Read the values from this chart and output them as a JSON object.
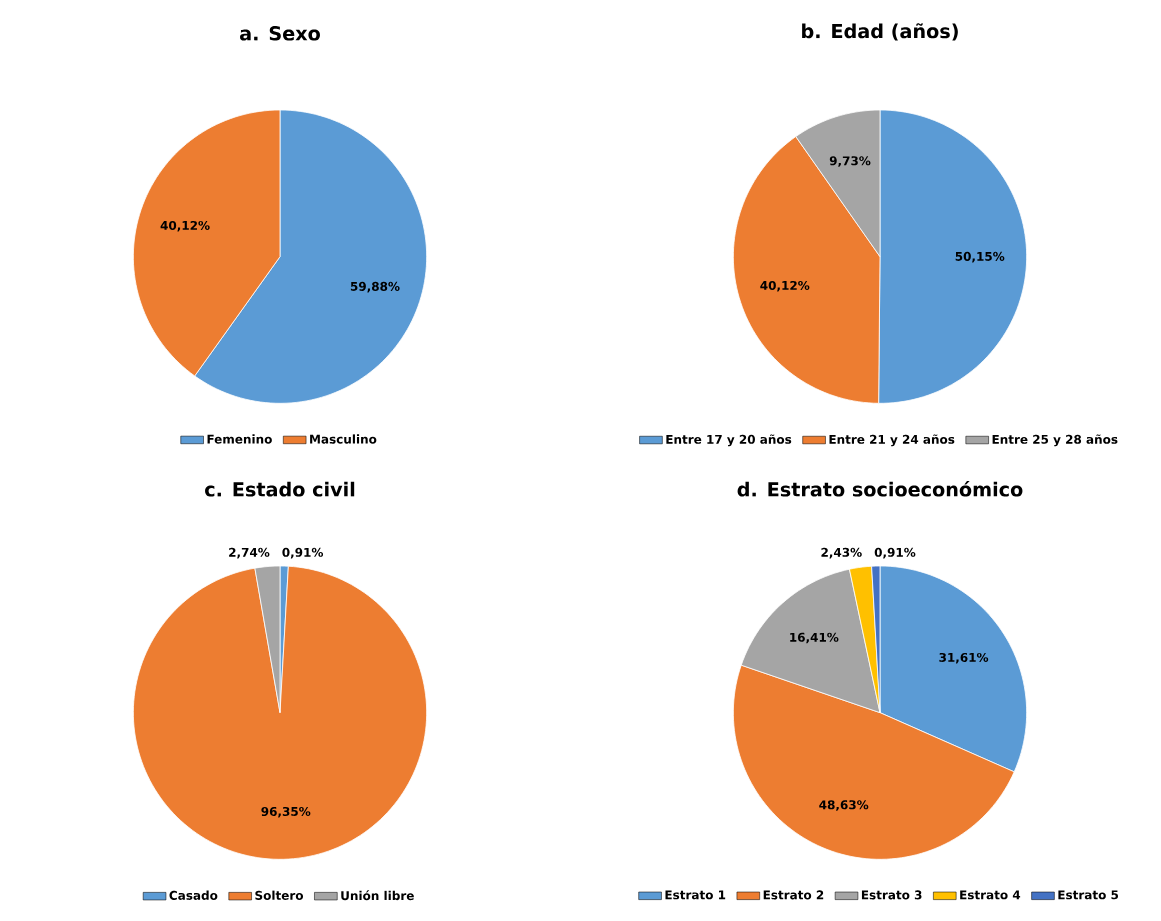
{
  "chart_data": [
    {
      "type": "pie",
      "title": "a. Sexo",
      "categories": [
        "Femenino",
        "Masculino"
      ],
      "values": [
        59.88,
        40.12
      ],
      "value_labels": [
        "59,88%",
        "40,12%"
      ],
      "colors": [
        "#5b9bd5",
        "#ed7d31"
      ],
      "legend": "bottom"
    },
    {
      "type": "pie",
      "title": "b. Edad (años)",
      "categories": [
        "Entre 17 y 20 años",
        "Entre 21 y 24 años",
        "Entre 25 y 28 años"
      ],
      "values": [
        50.15,
        40.12,
        9.73
      ],
      "value_labels": [
        "50,15%",
        "40,12%",
        "9,73%"
      ],
      "colors": [
        "#5b9bd5",
        "#ed7d31",
        "#a5a5a5"
      ],
      "legend": "bottom"
    },
    {
      "type": "pie",
      "title": "c. Estado civil",
      "categories": [
        "Casado",
        "Soltero",
        "Unión libre"
      ],
      "values": [
        0.91,
        96.35,
        2.74
      ],
      "value_labels": [
        "0,91%",
        "96,35%",
        "2,74%"
      ],
      "colors": [
        "#5b9bd5",
        "#ed7d31",
        "#a5a5a5"
      ],
      "legend": "bottom"
    },
    {
      "type": "pie",
      "title": "d. Estrato socioeconómico",
      "categories": [
        "Estrato 1",
        "Estrato 2",
        "Estrato 3",
        "Estrato 4",
        "Estrato 5"
      ],
      "values": [
        31.61,
        48.63,
        16.41,
        2.43,
        0.91
      ],
      "value_labels": [
        "31,61%",
        "48,63%",
        "16,41%",
        "2,43%",
        "0,91%"
      ],
      "colors": [
        "#5b9bd5",
        "#ed7d31",
        "#a5a5a5",
        "#ffc000",
        "#4472c4"
      ],
      "legend": "bottom"
    }
  ]
}
